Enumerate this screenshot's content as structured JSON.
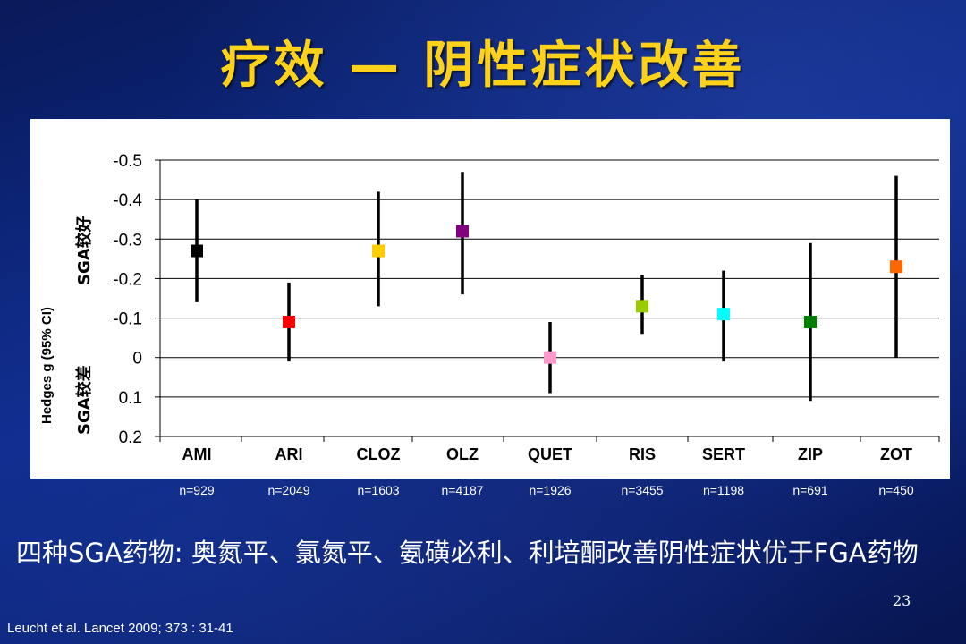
{
  "slide": {
    "title": "疗效 — 阴性症状改善",
    "note": "四种SGA药物: 奥氮平、氯氮平、氨磺必利、利培酮改善阴性症状优于FGA药物",
    "page_number": "23",
    "citation": "Leucht et al. Lancet 2009; 373 : 31-41"
  },
  "chart_data": {
    "type": "scatter",
    "ylabel": "Hedges g (95% CI)",
    "y_top_annotation": "SGA较好",
    "y_bottom_annotation": "SGA较差",
    "y_reversed": true,
    "ylim": [
      -0.5,
      0.2
    ],
    "yticks": [
      -0.5,
      -0.4,
      -0.3,
      -0.2,
      -0.1,
      0,
      0.1,
      0.2
    ],
    "ytick_labels": [
      "-0.5",
      "-0.4",
      "-0.3",
      "-0.2",
      "-0.1",
      "0",
      "0.1",
      "0.2"
    ],
    "grid": true,
    "categories": [
      "AMI",
      "ARI",
      "CLOZ",
      "OLZ",
      "QUET",
      "RIS",
      "SERT",
      "ZIP",
      "ZOT"
    ],
    "sample_sizes": [
      "n=929",
      "n=2049",
      "n=1603",
      "n=4187",
      "n=1926",
      "n=3455",
      "n=1198",
      "n=691",
      "n=450"
    ],
    "points": [
      {
        "label": "AMI",
        "g": -0.27,
        "ci_low": -0.4,
        "ci_high": -0.14,
        "color": "#000000"
      },
      {
        "label": "ARI",
        "g": -0.09,
        "ci_low": -0.19,
        "ci_high": 0.01,
        "color": "#ff0000"
      },
      {
        "label": "CLOZ",
        "g": -0.27,
        "ci_low": -0.42,
        "ci_high": -0.13,
        "color": "#ffcc00"
      },
      {
        "label": "OLZ",
        "g": -0.32,
        "ci_low": -0.47,
        "ci_high": -0.16,
        "color": "#800080"
      },
      {
        "label": "QUET",
        "g": 0.0,
        "ci_low": -0.09,
        "ci_high": 0.09,
        "color": "#ff99cc"
      },
      {
        "label": "RIS",
        "g": -0.13,
        "ci_low": -0.21,
        "ci_high": -0.06,
        "color": "#99cc00"
      },
      {
        "label": "SERT",
        "g": -0.11,
        "ci_low": -0.22,
        "ci_high": 0.01,
        "color": "#00ffff"
      },
      {
        "label": "ZIP",
        "g": -0.09,
        "ci_low": -0.29,
        "ci_high": 0.11,
        "color": "#008000"
      },
      {
        "label": "ZOT",
        "g": -0.23,
        "ci_low": -0.46,
        "ci_high": 0.0,
        "color": "#ff6600"
      }
    ]
  }
}
